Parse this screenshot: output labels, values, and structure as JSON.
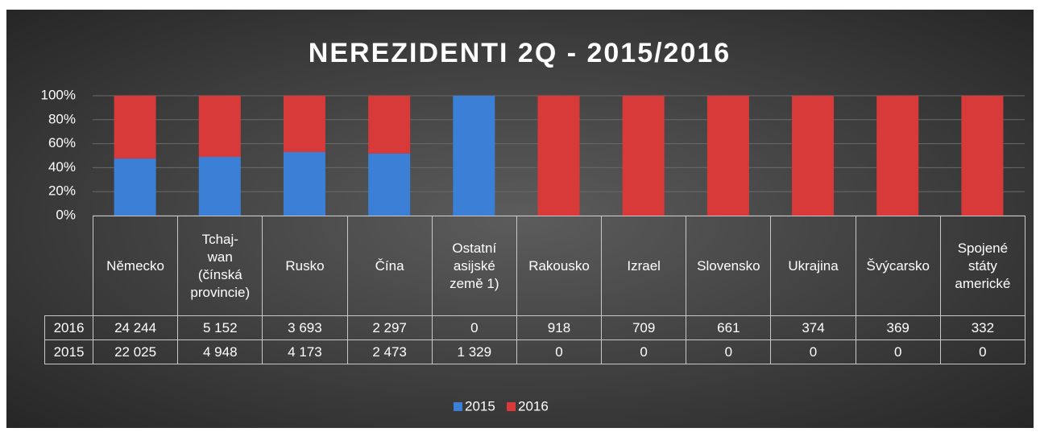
{
  "chart_data": {
    "type": "bar",
    "stacked": "percent",
    "title": "NEREZIDENTI 2Q - 2015/2016",
    "categories": [
      "Německo",
      "Tchaj-\nwan\n(čínská\nprovincie)",
      "Rusko",
      "Čína",
      "Ostatní\nasijské\nzemě 1)",
      "Rakousko",
      "Izrael",
      "Slovensko",
      "Ukrajina",
      "Švýcarsko",
      "Spojené\nstáty\namerické"
    ],
    "series": [
      {
        "name": "2015",
        "color": "#3b80d6",
        "values": [
          22025,
          4948,
          4173,
          2473,
          1329,
          0,
          0,
          0,
          0,
          0,
          0
        ],
        "value_labels": [
          "22 025",
          "4 948",
          "4 173",
          "2 473",
          "1 329",
          "0",
          "0",
          "0",
          "0",
          "0",
          "0"
        ]
      },
      {
        "name": "2016",
        "color": "#d83a3a",
        "values": [
          24244,
          5152,
          3693,
          2297,
          0,
          918,
          709,
          661,
          374,
          369,
          332
        ],
        "value_labels": [
          "24 244",
          "5 152",
          "3 693",
          "2 297",
          "0",
          "918",
          "709",
          "661",
          "374",
          "369",
          "332"
        ]
      }
    ],
    "ylim": [
      0,
      100
    ],
    "yticks": [
      {
        "value": 0,
        "label": "0%"
      },
      {
        "value": 20,
        "label": "20%"
      },
      {
        "value": 40,
        "label": "40%"
      },
      {
        "value": 60,
        "label": "60%"
      },
      {
        "value": 80,
        "label": "80%"
      },
      {
        "value": 100,
        "label": "100%"
      }
    ],
    "grid": true,
    "legend": "bottom"
  }
}
